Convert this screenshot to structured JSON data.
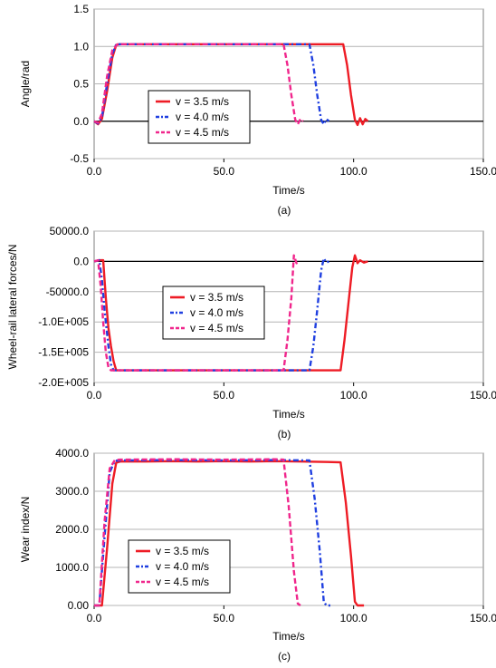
{
  "chart_data": [
    {
      "type": "line",
      "panel_label": "(a)",
      "xlabel": "Time/s",
      "ylabel": "Angle/rad",
      "xlim": [
        0,
        150
      ],
      "ylim": [
        -0.5,
        1.5
      ],
      "x_ticks": [
        "0.0",
        "50.0",
        "100.0",
        "150.0"
      ],
      "y_ticks": [
        "-0.5",
        "0.0",
        "0.5",
        "1.0",
        "1.5"
      ],
      "y_tick_values": [
        -0.5,
        0,
        0.5,
        1.0,
        1.5
      ],
      "grid": true,
      "legend_position": "center-left",
      "series": [
        {
          "name": "v = 3.5 m/s",
          "color": "#ee1c25",
          "dash": "solid",
          "x": [
            0,
            1.5,
            3,
            5,
            7,
            8.5,
            10,
            30,
            60,
            90,
            96,
            97.5,
            99,
            100.5,
            101.5,
            102.5,
            103.5,
            104.5,
            105.5
          ],
          "y": [
            0,
            -0.04,
            0.03,
            0.4,
            0.85,
            1.02,
            1.03,
            1.03,
            1.03,
            1.03,
            1.03,
            0.75,
            0.35,
            0.02,
            -0.05,
            0.04,
            -0.04,
            0.03,
            0.0
          ]
        },
        {
          "name": "v = 4.0 m/s",
          "color": "#1f3fe0",
          "dash": "dashdot",
          "x": [
            0,
            1.5,
            3,
            5,
            7,
            8.5,
            10,
            30,
            60,
            83,
            84.5,
            86,
            87.5,
            88.5,
            89.5,
            90.5
          ],
          "y": [
            0,
            -0.03,
            0.05,
            0.5,
            0.9,
            1.03,
            1.03,
            1.03,
            1.03,
            1.03,
            0.75,
            0.35,
            0.02,
            -0.04,
            0.03,
            0.0
          ]
        },
        {
          "name": "v = 4.5 m/s",
          "color": "#f0268c",
          "dash": "dashed",
          "x": [
            0,
            1.5,
            3,
            5,
            7,
            9,
            30,
            60,
            73,
            74.5,
            76,
            77.5,
            78.5,
            79.5,
            80.5
          ],
          "y": [
            0,
            -0.02,
            0.1,
            0.6,
            0.95,
            1.03,
            1.03,
            1.03,
            1.03,
            0.75,
            0.35,
            0.02,
            -0.04,
            0.03,
            0.0
          ]
        }
      ]
    },
    {
      "type": "line",
      "panel_label": "(b)",
      "xlabel": "Time/s",
      "ylabel": "Wheel-rail lateral forces/N",
      "xlim": [
        0,
        150
      ],
      "ylim": [
        -200000,
        50000
      ],
      "x_ticks": [
        "0.0",
        "50.0",
        "100.0",
        "150.0"
      ],
      "y_ticks": [
        "-2.0E+005",
        "-1.5E+005",
        "-1.0E+005",
        "-50000.0",
        "0.0",
        "50000.0"
      ],
      "y_tick_values": [
        -200000,
        -150000,
        -100000,
        -50000,
        0,
        50000
      ],
      "grid": true,
      "legend_position": "center",
      "series": [
        {
          "name": "v = 3.5 m/s",
          "color": "#ee1c25",
          "dash": "solid",
          "x": [
            0,
            2,
            3.5,
            4.5,
            5.5,
            6.5,
            7.5,
            8.5,
            20,
            50,
            80,
            95,
            96.5,
            98,
            99.5,
            100.5,
            101.5,
            102.5,
            104,
            105.5
          ],
          "y": [
            0,
            2000,
            2000,
            -60000,
            -110000,
            -140000,
            -165000,
            -180000,
            -180000,
            -180000,
            -180000,
            -180000,
            -130000,
            -70000,
            -10000,
            10000,
            -3000,
            2000,
            -2000,
            0
          ]
        },
        {
          "name": "v = 4.0 m/s",
          "color": "#1f3fe0",
          "dash": "dashdot",
          "x": [
            0,
            2,
            3,
            4,
            5.5,
            6.5,
            7.5,
            20,
            50,
            80,
            83,
            84.5,
            86,
            87.5,
            88.5,
            89.5,
            90.5
          ],
          "y": [
            0,
            2000,
            -30000,
            -80000,
            -140000,
            -170000,
            -180000,
            -180000,
            -180000,
            -180000,
            -180000,
            -140000,
            -80000,
            -15000,
            5000,
            -2000,
            0
          ]
        },
        {
          "name": "v = 4.5 m/s",
          "color": "#f0268c",
          "dash": "dashed",
          "x": [
            0,
            1.5,
            2.5,
            3.5,
            4.5,
            5.5,
            6.5,
            20,
            50,
            73,
            74.5,
            76,
            77,
            78,
            79
          ],
          "y": [
            0,
            2000,
            -40000,
            -100000,
            -150000,
            -175000,
            -180000,
            -180000,
            -180000,
            -180000,
            -130000,
            -60000,
            10000,
            -3000,
            0
          ]
        }
      ]
    },
    {
      "type": "line",
      "panel_label": "(c)",
      "xlabel": "Time/s",
      "ylabel": "Wear index/N",
      "xlim": [
        0,
        150
      ],
      "ylim": [
        0,
        4000
      ],
      "x_ticks": [
        "0.0",
        "50.0",
        "100.0",
        "150.0"
      ],
      "y_ticks": [
        "0.00",
        "1000.0",
        "2000.0",
        "3000.0",
        "4000.0"
      ],
      "y_tick_values": [
        0,
        1000,
        2000,
        3000,
        4000
      ],
      "grid": true,
      "legend_position": "bottom-left",
      "series": [
        {
          "name": "v = 3.5 m/s",
          "color": "#ee1c25",
          "dash": "solid",
          "x": [
            0,
            3,
            5,
            7,
            8.5,
            10,
            20,
            30,
            40,
            50,
            60,
            70,
            80,
            90,
            95,
            97,
            99,
            100.5,
            101.5,
            104
          ],
          "y": [
            0,
            0,
            1500,
            3200,
            3750,
            3780,
            3780,
            3790,
            3780,
            3790,
            3780,
            3790,
            3780,
            3770,
            3760,
            2700,
            1300,
            100,
            0,
            0
          ]
        },
        {
          "name": "v = 4.0 m/s",
          "color": "#1f3fe0",
          "dash": "dashdot",
          "x": [
            0,
            2,
            4,
            6,
            8,
            10,
            30,
            50,
            70,
            83,
            85,
            87,
            88.5,
            89.5,
            91
          ],
          "y": [
            0,
            0,
            1800,
            3500,
            3800,
            3810,
            3820,
            3810,
            3820,
            3810,
            2800,
            1400,
            100,
            0,
            0
          ]
        },
        {
          "name": "v = 4.5 m/s",
          "color": "#f0268c",
          "dash": "dashed",
          "x": [
            0,
            2,
            4,
            6,
            8,
            10,
            30,
            50,
            70,
            73,
            75,
            77,
            78.5,
            79.5
          ],
          "y": [
            0,
            0,
            2200,
            3600,
            3820,
            3830,
            3840,
            3830,
            3840,
            3830,
            2600,
            900,
            50,
            0
          ]
        }
      ]
    }
  ]
}
